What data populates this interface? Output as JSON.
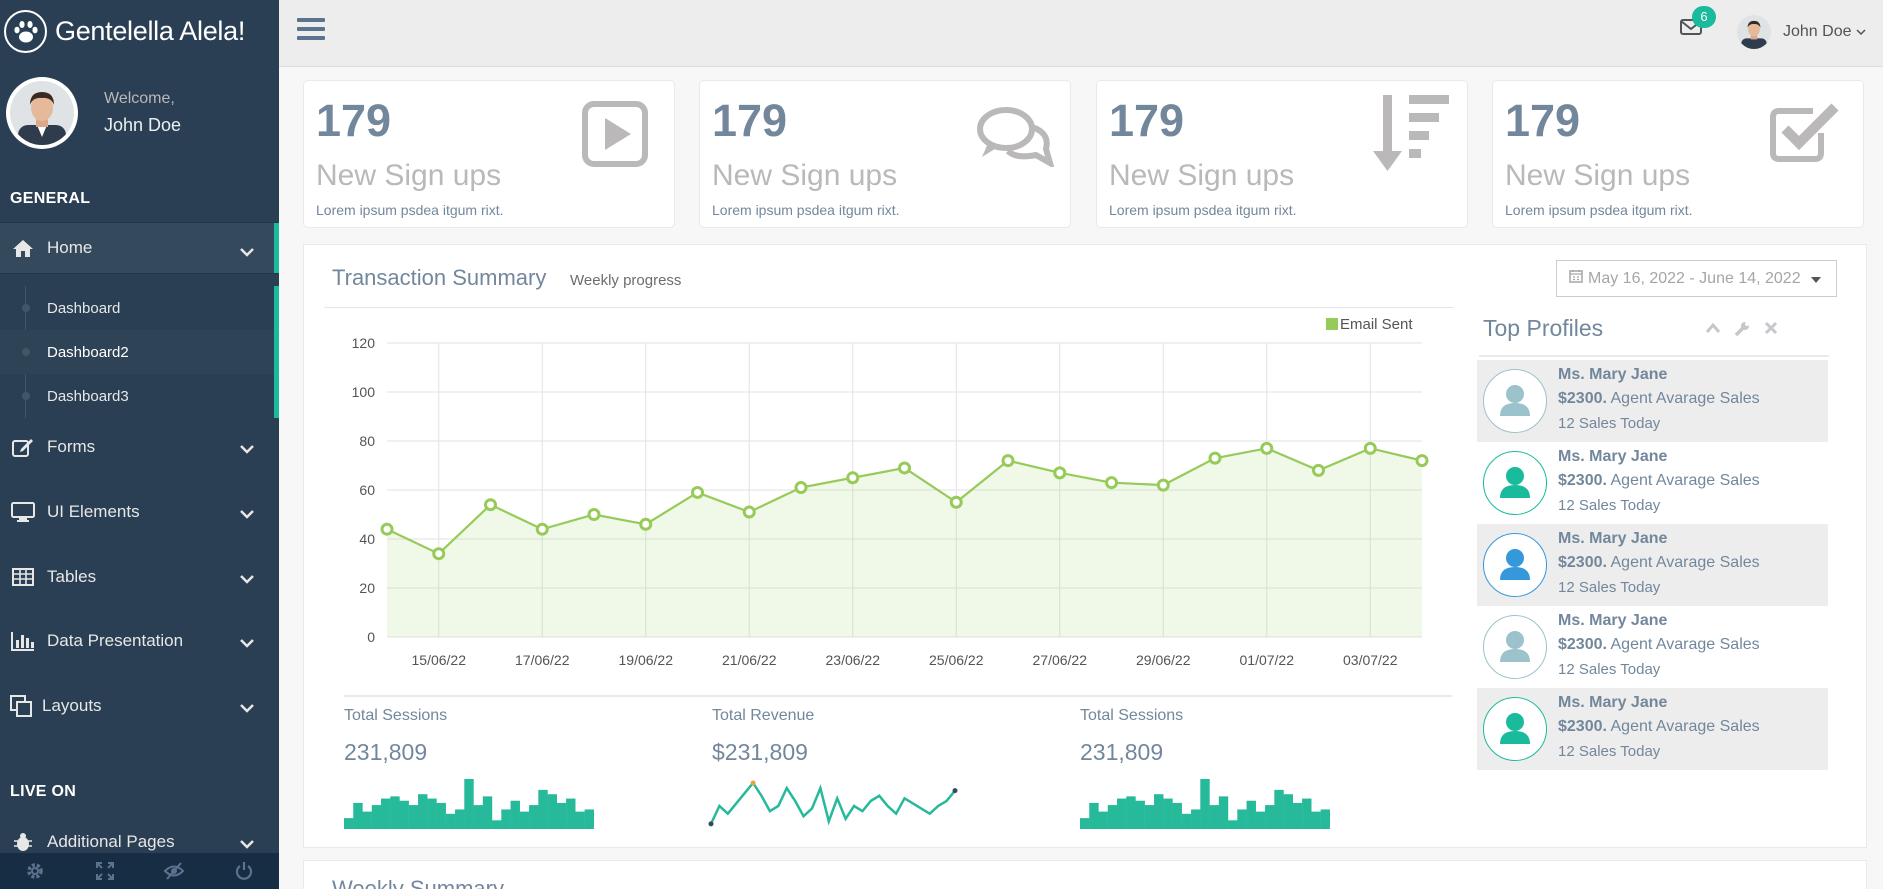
{
  "brand": {
    "title": "Gentelella Alela!"
  },
  "profile": {
    "welcome": "Welcome,",
    "name": "John Doe"
  },
  "sidebar": {
    "sections": {
      "general": "GENERAL",
      "live_on": "LIVE ON"
    },
    "items": [
      {
        "label": "Home",
        "icon": "home-icon"
      },
      {
        "label": "Forms",
        "icon": "edit-icon"
      },
      {
        "label": "UI Elements",
        "icon": "desktop-icon"
      },
      {
        "label": "Tables",
        "icon": "table-icon"
      },
      {
        "label": "Data Presentation",
        "icon": "bar-chart-icon"
      },
      {
        "label": "Layouts",
        "icon": "clone-icon"
      },
      {
        "label": "Additional Pages",
        "icon": "bug-icon"
      }
    ],
    "home_sub": [
      {
        "label": "Dashboard"
      },
      {
        "label": "Dashboard2"
      },
      {
        "label": "Dashboard3"
      }
    ],
    "footer": [
      "settings-icon",
      "fullscreen-icon",
      "eye-slash-icon",
      "power-icon"
    ]
  },
  "topnav": {
    "mail_badge": "6",
    "user_name": "John Doe"
  },
  "tiles": [
    {
      "count": "179",
      "label": "New Sign ups",
      "desc": "Lorem ipsum psdea itgum rixt.",
      "icon": "play-square-icon"
    },
    {
      "count": "179",
      "label": "New Sign ups",
      "desc": "Lorem ipsum psdea itgum rixt.",
      "icon": "comments-icon"
    },
    {
      "count": "179",
      "label": "New Sign ups",
      "desc": "Lorem ipsum psdea itgum rixt.",
      "icon": "sort-amount-desc-icon"
    },
    {
      "count": "179",
      "label": "New Sign ups",
      "desc": "Lorem ipsum psdea itgum rixt.",
      "icon": "check-square-icon"
    }
  ],
  "panel": {
    "title": "Transaction Summary",
    "subtitle": "Weekly progress",
    "daterange": "May 16, 2022 - June 14, 2022"
  },
  "chart_data": {
    "type": "area",
    "legend": "Email Sent",
    "legend_position": "top-right",
    "color": "#96ca59",
    "ylim": [
      0,
      120
    ],
    "yticks": [
      0,
      20,
      40,
      60,
      80,
      100,
      120
    ],
    "xtick_labels": [
      "15/06/22",
      "17/06/22",
      "19/06/22",
      "21/06/22",
      "23/06/22",
      "25/06/22",
      "27/06/22",
      "29/06/22",
      "01/07/22",
      "03/07/22"
    ],
    "grid": true,
    "series": [
      {
        "name": "Email Sent",
        "values": [
          44,
          34,
          54,
          44,
          50,
          46,
          59,
          51,
          61,
          65,
          69,
          55,
          72,
          67,
          63,
          62,
          73,
          77,
          68,
          77,
          72
        ]
      }
    ]
  },
  "stats": [
    {
      "label": "Total Sessions",
      "value": "231,809",
      "kind": "bar",
      "values": [
        5,
        12,
        8,
        11,
        14,
        15,
        13,
        11,
        16,
        14,
        12,
        7,
        9,
        23,
        11,
        15,
        4,
        9,
        13,
        8,
        11,
        18,
        16,
        12,
        14,
        8,
        9
      ]
    },
    {
      "label": "Total Revenue",
      "value": "$231,809",
      "kind": "line",
      "values": [
        2,
        9,
        6,
        10,
        14,
        18,
        13,
        7,
        9,
        16,
        11,
        5,
        8,
        16,
        3,
        12,
        4,
        9,
        7,
        11,
        13,
        9,
        6,
        12,
        10,
        8,
        6,
        9,
        11,
        15
      ]
    },
    {
      "label": "Total Sessions",
      "value": "231,809",
      "kind": "bar",
      "values": [
        5,
        12,
        8,
        11,
        14,
        15,
        13,
        11,
        16,
        14,
        12,
        7,
        9,
        23,
        11,
        15,
        4,
        9,
        13,
        8,
        11,
        18,
        16,
        12,
        14,
        8,
        9
      ]
    }
  ],
  "top_profiles": {
    "title": "Top Profiles",
    "items": [
      {
        "name": "Ms. Mary Jane",
        "amount": "$2300.",
        "role": "Agent Avarage Sales",
        "today": "12 Sales Today",
        "color": "#9cc2cb"
      },
      {
        "name": "Ms. Mary Jane",
        "amount": "$2300.",
        "role": "Agent Avarage Sales",
        "today": "12 Sales Today",
        "color": "#1abb9c"
      },
      {
        "name": "Ms. Mary Jane",
        "amount": "$2300.",
        "role": "Agent Avarage Sales",
        "today": "12 Sales Today",
        "color": "#3498db"
      },
      {
        "name": "Ms. Mary Jane",
        "amount": "$2300.",
        "role": "Agent Avarage Sales",
        "today": "12 Sales Today",
        "color": "#9cc2cb"
      },
      {
        "name": "Ms. Mary Jane",
        "amount": "$2300.",
        "role": "Agent Avarage Sales",
        "today": "12 Sales Today",
        "color": "#1abb9c"
      }
    ]
  },
  "panel2": {
    "title": "Weekly Summary"
  }
}
